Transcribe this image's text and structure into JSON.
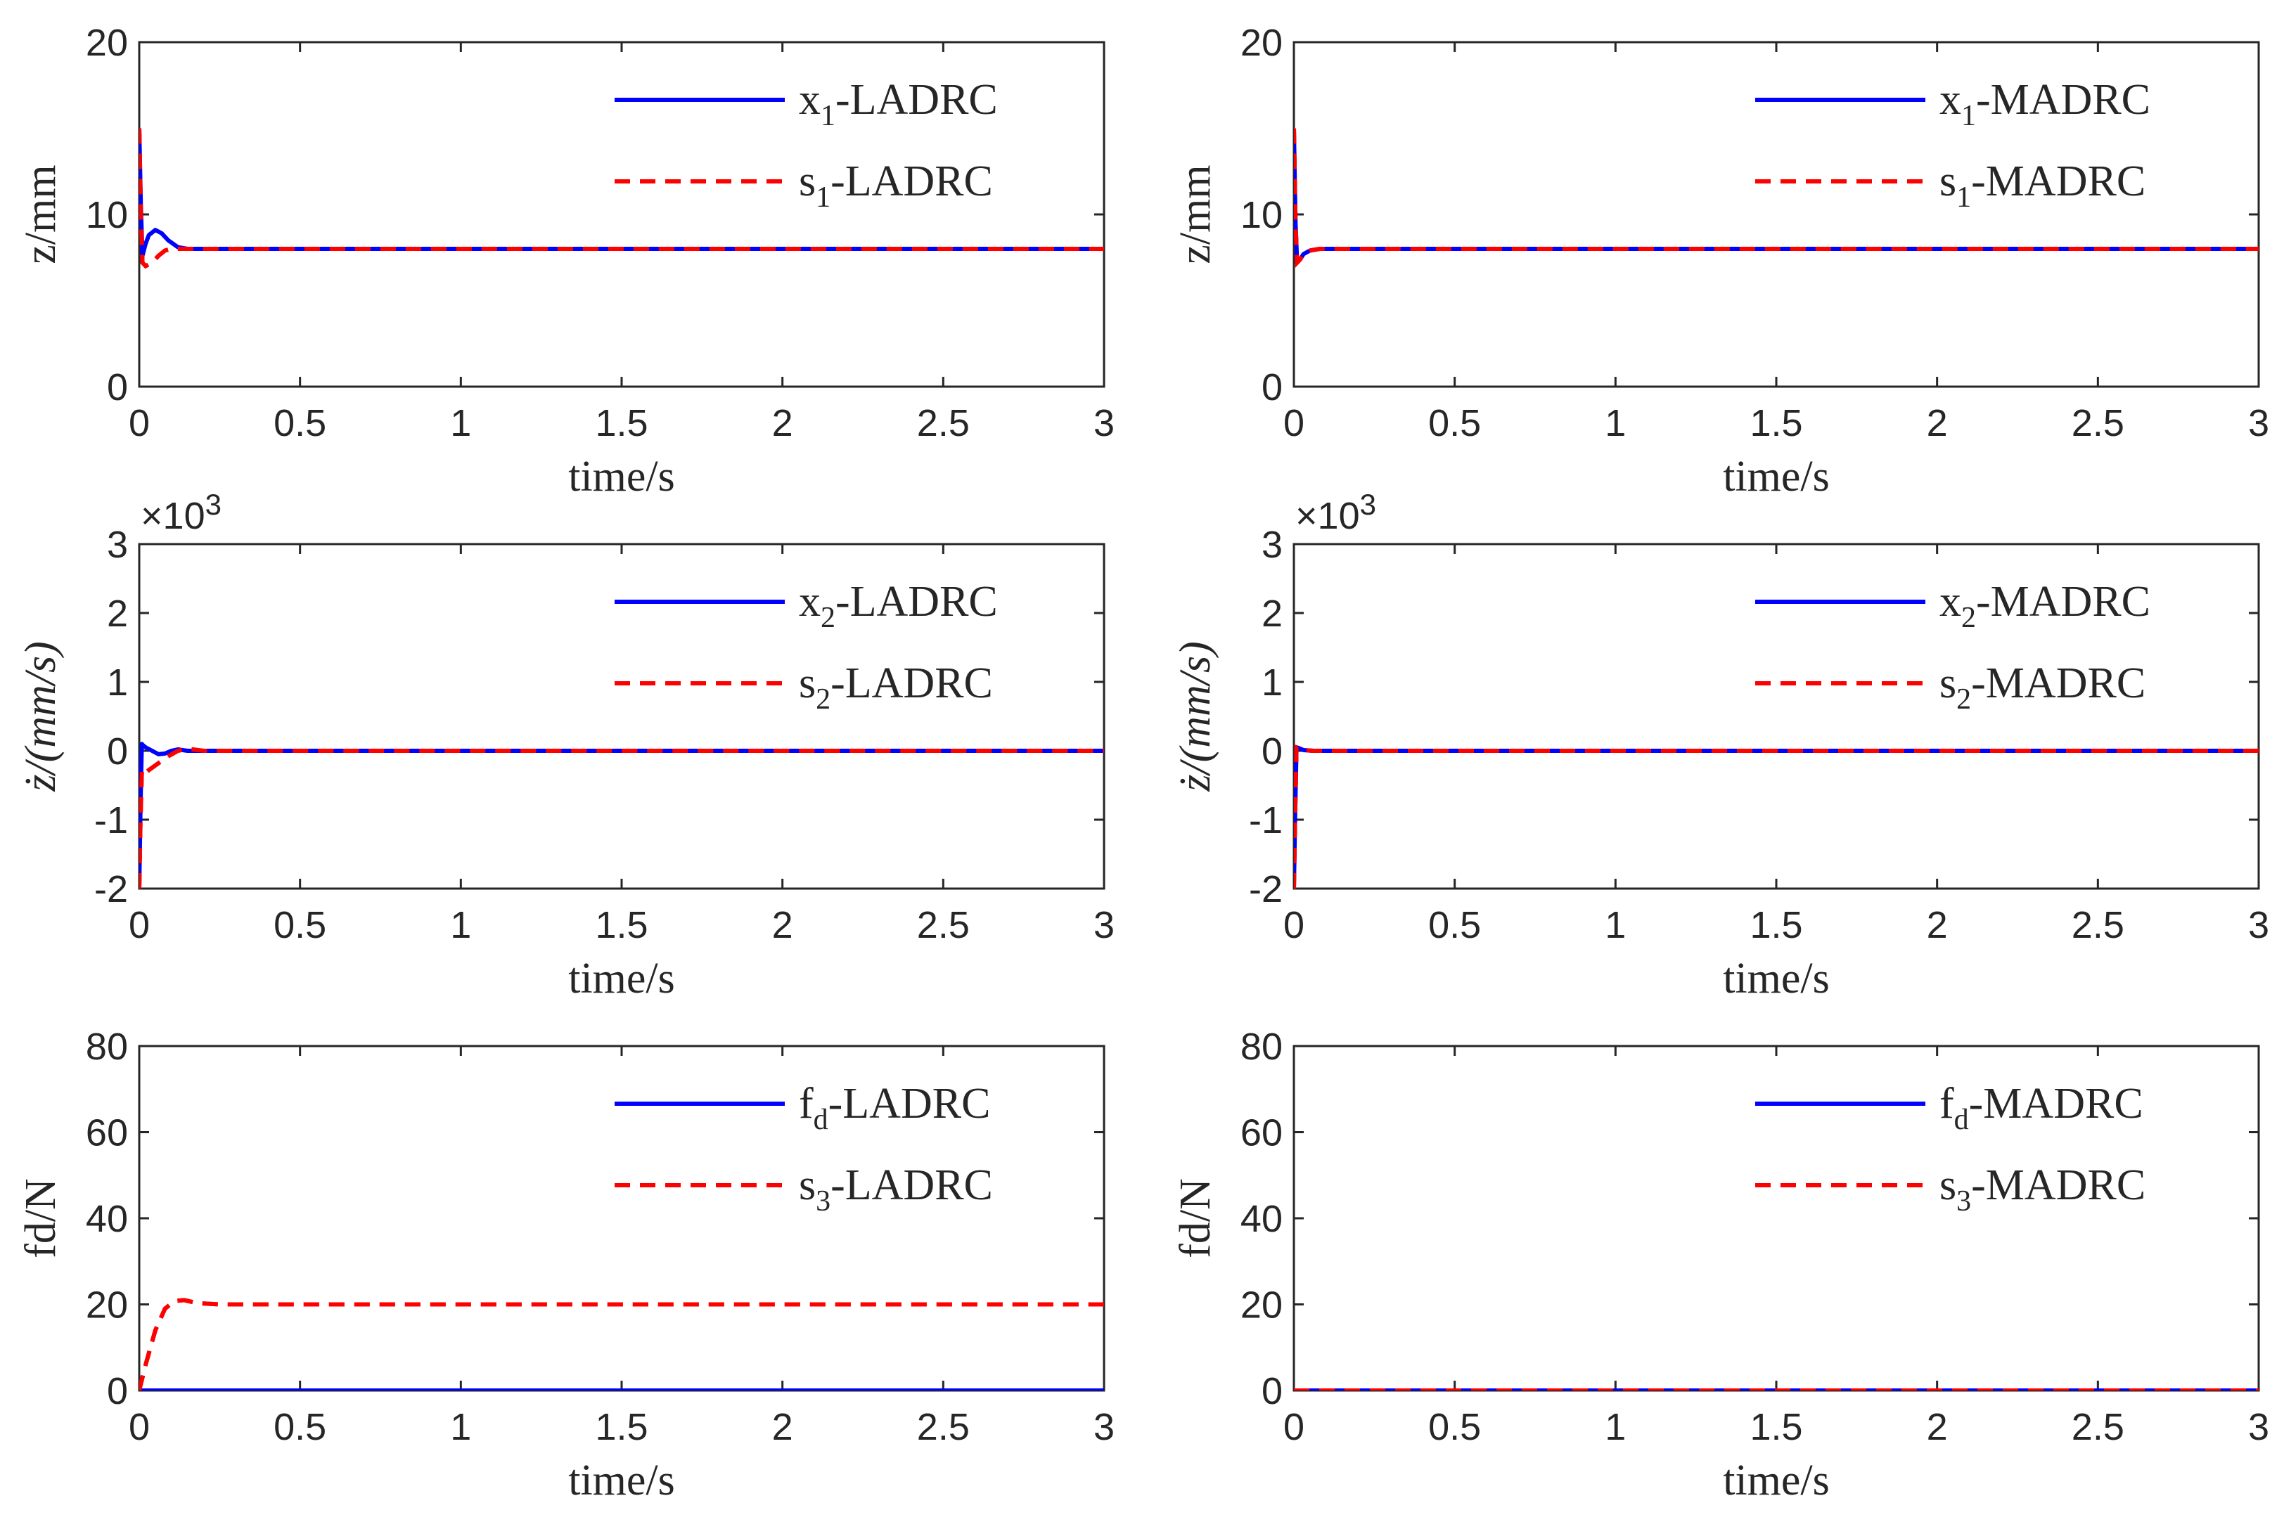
{
  "colors": {
    "blue": "#0000ff",
    "red": "#ff0000",
    "axis": "#262626"
  },
  "chart_data": [
    {
      "type": "line",
      "row": 0,
      "col": 0,
      "xlabel": "time/s",
      "ylabel": "z/mm",
      "xlim": [
        0,
        3
      ],
      "ylim": [
        0,
        20
      ],
      "xticks": [
        "0",
        "0.5",
        "1",
        "1.5",
        "2",
        "2.5",
        "3"
      ],
      "yticks": [
        "0",
        "10",
        "20"
      ],
      "y_exponent": "",
      "series": [
        {
          "name": "x",
          "sub": "1",
          "suffix": "-LADRC",
          "style": "solid",
          "color": "#0000ff",
          "x": [
            0,
            0.005,
            0.01,
            0.02,
            0.03,
            0.05,
            0.07,
            0.09,
            0.12,
            0.15,
            0.2,
            0.3,
            3
          ],
          "y": [
            15,
            10.5,
            7.6,
            8.3,
            8.8,
            9.1,
            8.9,
            8.5,
            8.1,
            8.0,
            8.0,
            8.0,
            8.0
          ]
        },
        {
          "name": "s",
          "sub": "1",
          "suffix": "-LADRC",
          "style": "dashed",
          "color": "#ff0000",
          "x": [
            0,
            0.005,
            0.01,
            0.02,
            0.04,
            0.06,
            0.08,
            0.1,
            0.13,
            0.2,
            3
          ],
          "y": [
            15,
            10.0,
            7.2,
            7.0,
            7.2,
            7.6,
            7.9,
            8.0,
            8.0,
            8.0,
            8.0
          ]
        }
      ]
    },
    {
      "type": "line",
      "row": 0,
      "col": 1,
      "xlabel": "time/s",
      "ylabel": "z/mm",
      "xlim": [
        0,
        3
      ],
      "ylim": [
        0,
        20
      ],
      "xticks": [
        "0",
        "0.5",
        "1",
        "1.5",
        "2",
        "2.5",
        "3"
      ],
      "yticks": [
        "0",
        "10",
        "20"
      ],
      "y_exponent": "",
      "series": [
        {
          "name": "x",
          "sub": "1",
          "suffix": "-MADRC",
          "style": "solid",
          "color": "#0000ff",
          "x": [
            0,
            0.005,
            0.01,
            0.02,
            0.03,
            0.05,
            0.08,
            0.12,
            3
          ],
          "y": [
            15,
            9.5,
            7.2,
            7.4,
            7.7,
            7.9,
            8.0,
            8.0,
            8.0
          ]
        },
        {
          "name": "s",
          "sub": "1",
          "suffix": "-MADRC",
          "style": "dashed",
          "color": "#ff0000",
          "x": [
            0,
            0.005,
            0.01,
            0.02,
            0.03,
            0.05,
            0.08,
            0.12,
            3
          ],
          "y": [
            15,
            9.5,
            7.2,
            7.4,
            7.7,
            7.9,
            8.0,
            8.0,
            8.0
          ]
        }
      ]
    },
    {
      "type": "line",
      "row": 1,
      "col": 0,
      "xlabel": "time/s",
      "ylabel": "ż/(mm/s)",
      "xlim": [
        0,
        3
      ],
      "ylim": [
        -2,
        3
      ],
      "xticks": [
        "0",
        "0.5",
        "1",
        "1.5",
        "2",
        "2.5",
        "3"
      ],
      "yticks": [
        "-2",
        "-1",
        "0",
        "1",
        "2",
        "3"
      ],
      "y_exponent": "×10",
      "y_exponent_power": "3",
      "series": [
        {
          "name": "x",
          "sub": "2",
          "suffix": "-LADRC",
          "style": "solid",
          "color": "#0000ff",
          "x": [
            0,
            0.004,
            0.008,
            0.012,
            0.02,
            0.04,
            0.06,
            0.08,
            0.1,
            0.12,
            0.15,
            0.2,
            3
          ],
          "y": [
            -2,
            -0.8,
            0.1,
            0.08,
            0.05,
            0.0,
            -0.05,
            -0.04,
            0.0,
            0.02,
            0.0,
            0.0,
            0.0
          ]
        },
        {
          "name": "s",
          "sub": "2",
          "suffix": "-LADRC",
          "style": "dashed",
          "color": "#ff0000",
          "x": [
            0,
            0.004,
            0.008,
            0.012,
            0.03,
            0.06,
            0.09,
            0.12,
            0.15,
            0.2,
            3
          ],
          "y": [
            -2,
            -1.0,
            -0.3,
            -0.35,
            -0.28,
            -0.18,
            -0.08,
            0.0,
            0.03,
            0.0,
            0.0
          ]
        }
      ]
    },
    {
      "type": "line",
      "row": 1,
      "col": 1,
      "xlabel": "time/s",
      "ylabel": "ż/(mm/s)",
      "xlim": [
        0,
        3
      ],
      "ylim": [
        -2,
        3
      ],
      "xticks": [
        "0",
        "0.5",
        "1",
        "1.5",
        "2",
        "2.5",
        "3"
      ],
      "yticks": [
        "-2",
        "-1",
        "0",
        "1",
        "2",
        "3"
      ],
      "y_exponent": "×10",
      "y_exponent_power": "3",
      "series": [
        {
          "name": "x",
          "sub": "2",
          "suffix": "-MADRC",
          "style": "solid",
          "color": "#0000ff",
          "x": [
            0,
            0.004,
            0.008,
            0.015,
            0.03,
            0.06,
            3
          ],
          "y": [
            -2,
            -0.9,
            0.05,
            0.04,
            0.01,
            0.0,
            0.0
          ]
        },
        {
          "name": "s",
          "sub": "2",
          "suffix": "-MADRC",
          "style": "dashed",
          "color": "#ff0000",
          "x": [
            0,
            0.004,
            0.008,
            0.015,
            0.03,
            0.06,
            3
          ],
          "y": [
            -2,
            -0.9,
            0.05,
            0.04,
            0.01,
            0.0,
            0.0
          ]
        }
      ]
    },
    {
      "type": "line",
      "row": 2,
      "col": 0,
      "xlabel": "time/s",
      "ylabel": "fd/N",
      "xlim": [
        0,
        3
      ],
      "ylim": [
        0,
        80
      ],
      "xticks": [
        "0",
        "0.5",
        "1",
        "1.5",
        "2",
        "2.5",
        "3"
      ],
      "yticks": [
        "0",
        "20",
        "40",
        "60",
        "80"
      ],
      "y_exponent": "",
      "series": [
        {
          "name": "f",
          "sub": "d",
          "suffix": "-LADRC",
          "style": "solid",
          "color": "#0000ff",
          "x": [
            0,
            3
          ],
          "y": [
            0,
            0
          ]
        },
        {
          "name": "s",
          "sub": "3",
          "suffix": "-LADRC",
          "style": "dashed",
          "color": "#ff0000",
          "x": [
            0,
            0.02,
            0.05,
            0.08,
            0.11,
            0.14,
            0.18,
            0.25,
            3
          ],
          "y": [
            0,
            6,
            14,
            19,
            20.8,
            21,
            20.3,
            20,
            20
          ]
        }
      ]
    },
    {
      "type": "line",
      "row": 2,
      "col": 1,
      "xlabel": "time/s",
      "ylabel": "fd/N",
      "xlim": [
        0,
        3
      ],
      "ylim": [
        0,
        80
      ],
      "xticks": [
        "0",
        "0.5",
        "1",
        "1.5",
        "2",
        "2.5",
        "3"
      ],
      "yticks": [
        "0",
        "20",
        "40",
        "60",
        "80"
      ],
      "y_exponent": "",
      "series": [
        {
          "name": "f",
          "sub": "d",
          "suffix": "-MADRC",
          "style": "solid",
          "color": "#0000ff",
          "x": [
            0,
            3
          ],
          "y": [
            0,
            0
          ]
        },
        {
          "name": "s",
          "sub": "3",
          "suffix": "-MADRC",
          "style": "dashed",
          "color": "#ff0000",
          "x": [
            0,
            3
          ],
          "y": [
            0,
            0
          ]
        }
      ]
    }
  ]
}
